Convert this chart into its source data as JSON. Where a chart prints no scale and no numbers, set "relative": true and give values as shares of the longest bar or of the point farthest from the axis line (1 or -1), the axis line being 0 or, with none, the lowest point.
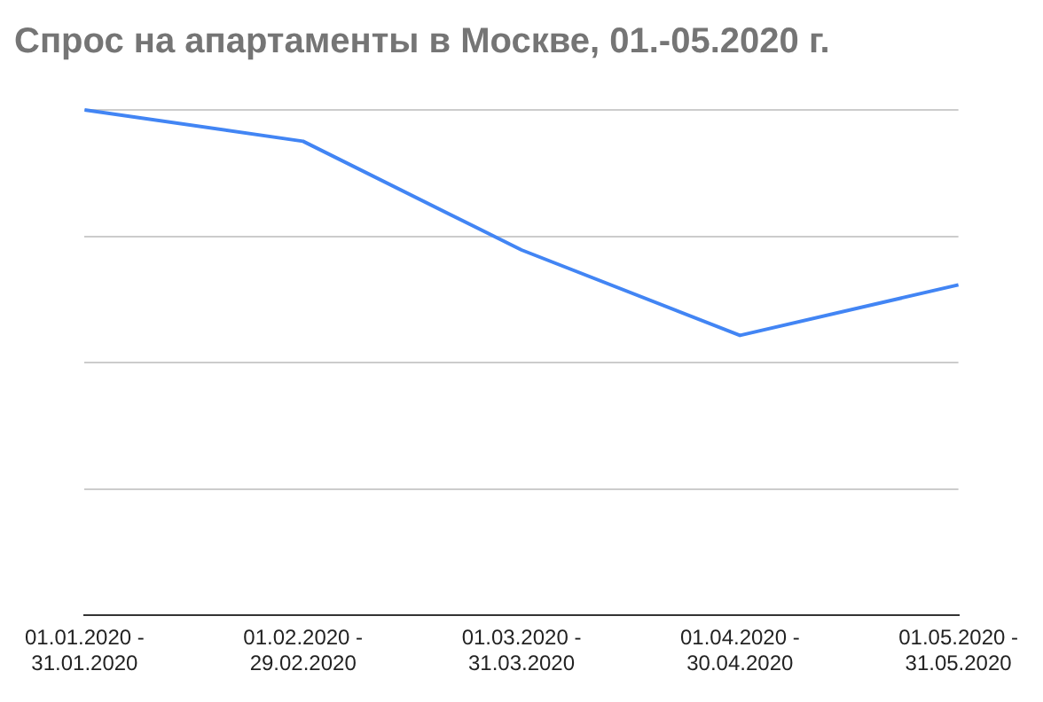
{
  "chart_data": {
    "type": "line",
    "title": "Спрос на апартаменты в Москве, 01.-05.2020 г.",
    "categories": [
      "01.01.2020 - 31.01.2020",
      "01.02.2020 - 29.02.2020",
      "01.03.2020 - 31.03.2020",
      "01.04.2020 - 30.04.2020",
      "01.05.2020 - 31.05.2020"
    ],
    "series": [
      {
        "color": "#4285f4",
        "values": [
          1,
          0.938,
          0.723,
          0.554,
          0.654
        ]
      }
    ],
    "relative": true,
    "grid": "y",
    "marker": "none",
    "legend": false
  }
}
